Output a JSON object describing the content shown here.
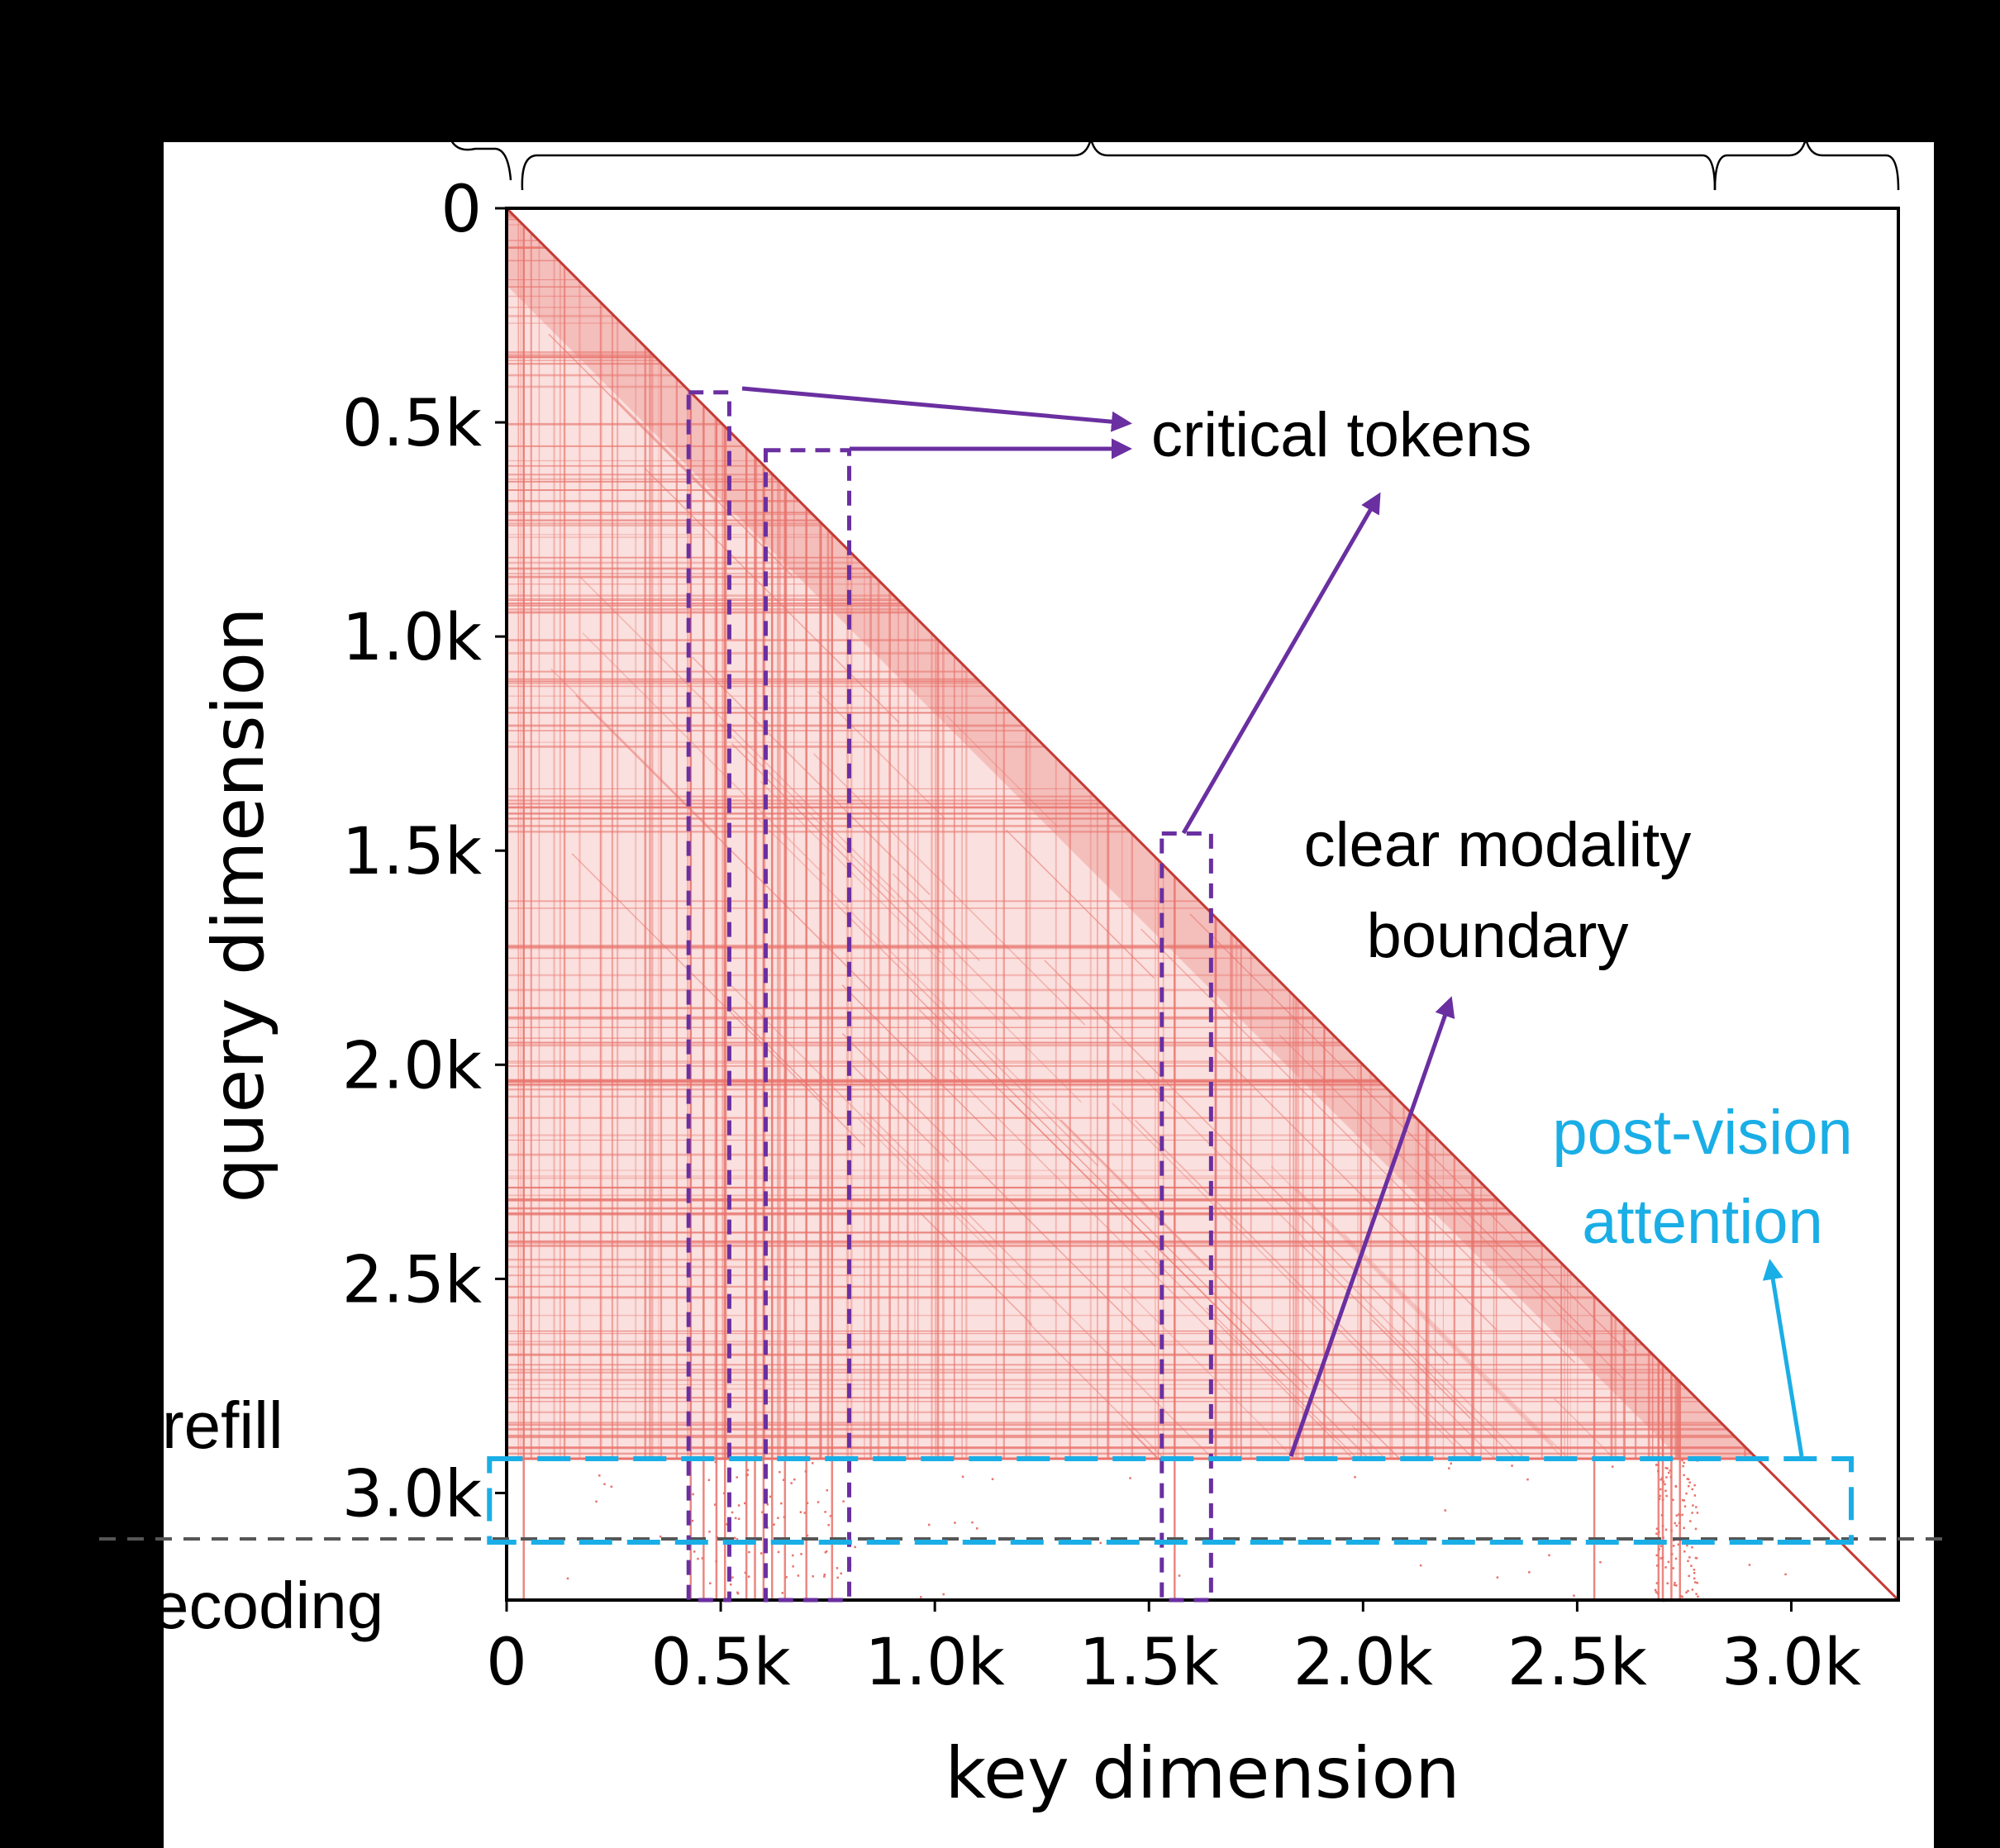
{
  "chart_data": {
    "type": "heatmap",
    "title": "",
    "xlabel": "key dimension",
    "ylabel": "query dimension",
    "xlim": [
      0,
      3250
    ],
    "ylim": [
      3250,
      0
    ],
    "x_ticks": [
      {
        "value": 0,
        "label": "0"
      },
      {
        "value": 500,
        "label": "0.5k"
      },
      {
        "value": 1000,
        "label": "1.0k"
      },
      {
        "value": 1500,
        "label": "1.5k"
      },
      {
        "value": 2000,
        "label": "2.0k"
      },
      {
        "value": 2500,
        "label": "2.5k"
      },
      {
        "value": 3000,
        "label": "3.0k"
      }
    ],
    "y_ticks": [
      {
        "value": 0,
        "label": "0"
      },
      {
        "value": 500,
        "label": "0.5k"
      },
      {
        "value": 1000,
        "label": "1.0k"
      },
      {
        "value": 1500,
        "label": "1.5k"
      },
      {
        "value": 2000,
        "label": "2.0k"
      },
      {
        "value": 2500,
        "label": "2.5k"
      },
      {
        "value": 3000,
        "label": "3.0k"
      }
    ],
    "mask": "causal (lower triangular) sparse attention",
    "prefill_end": 2920,
    "decoding_end": 3250,
    "vertical_lines": [
      40,
      430,
      460,
      490,
      510,
      560,
      580,
      600,
      620,
      650,
      700,
      760,
      1560,
      2540,
      2690,
      2700,
      2720,
      2740
    ],
    "critical_token_boxes": [
      {
        "x0": 425,
        "x1": 520,
        "y0": 430,
        "y1": 3250
      },
      {
        "x0": 605,
        "x1": 800,
        "y0": 565,
        "y1": 3250
      },
      {
        "x0": 1530,
        "x1": 1645,
        "y0": 1460,
        "y1": 3250
      }
    ],
    "post_vision_box": {
      "x0": -40,
      "x1": 3140,
      "y0": 2920,
      "y1": 3115
    },
    "colors": {
      "mask": "#e8726b",
      "diagonal": "#c43a35",
      "critical": "#6a2fa0",
      "post_vision": "#1aaee6"
    }
  },
  "annotations": {
    "critical_tokens": "critical tokens",
    "modality_line1": "clear modality",
    "modality_line2": "boundary",
    "post_vision_line1": "post-vision",
    "post_vision_line2": "attention"
  },
  "phases": {
    "prefill": "refill",
    "decoding": "ecoding"
  }
}
